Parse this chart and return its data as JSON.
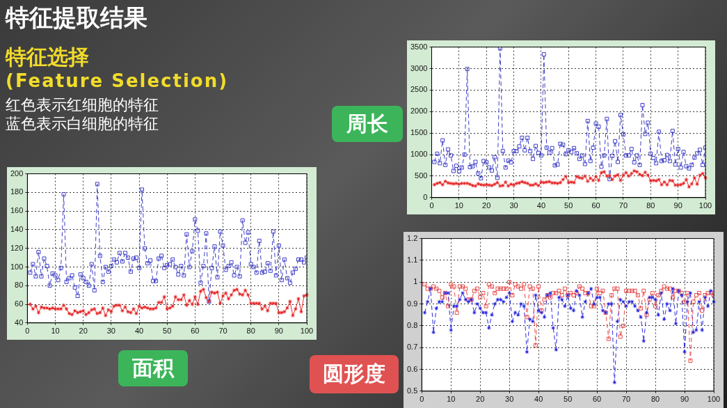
{
  "chart_data": [
    {
      "type": "line",
      "title": "面积",
      "annotations": [
        "特征提取结果",
        "特征选择",
        "(Feature Selection)",
        "红色表示红细胞的特征",
        "蓝色表示白细胞的特征"
      ],
      "x": [
        1,
        2,
        3,
        4,
        5,
        6,
        7,
        8,
        9,
        10,
        11,
        12,
        13,
        14,
        15,
        16,
        17,
        18,
        19,
        20,
        21,
        22,
        23,
        24,
        25,
        26,
        27,
        28,
        29,
        30,
        31,
        32,
        33,
        34,
        35,
        36,
        37,
        38,
        39,
        40,
        41,
        42,
        43,
        44,
        45,
        46,
        47,
        48,
        49,
        50,
        51,
        52,
        53,
        54,
        55,
        56,
        57,
        58,
        59,
        60,
        61,
        62,
        63,
        64,
        65,
        66,
        67,
        68,
        69,
        70,
        71,
        72,
        73,
        74,
        75,
        76,
        77,
        78,
        79,
        80,
        81,
        82,
        83,
        84,
        85,
        86,
        87,
        88,
        89,
        90,
        91,
        92,
        93,
        94,
        95,
        96,
        97,
        98,
        99,
        100
      ],
      "xlim": [
        0,
        100
      ],
      "xticks": [
        0,
        10,
        20,
        30,
        40,
        50,
        60,
        70,
        80,
        90,
        100
      ],
      "ylim": [
        40,
        200
      ],
      "yticks": [
        40,
        60,
        80,
        100,
        120,
        140,
        160,
        180,
        200
      ],
      "grid": true,
      "series": [
        {
          "color": "#3c3cc8",
          "marker": "square",
          "line_style": "dashed",
          "values": [
            94,
            103,
            90,
            116,
            90,
            109,
            101,
            80,
            93,
            91,
            86,
            99,
            178,
            84,
            88,
            91,
            78,
            69,
            92,
            88,
            84,
            80,
            103,
            75,
            189,
            112,
            84,
            100,
            95,
            101,
            108,
            105,
            115,
            106,
            115,
            110,
            95,
            109,
            110,
            99,
            183,
            120,
            104,
            107,
            85,
            85,
            109,
            112,
            99,
            102,
            103,
            108,
            100,
            92,
            101,
            91,
            135,
            100,
            117,
            151,
            139,
            83,
            101,
            136,
            63,
            99,
            122,
            89,
            138,
            123,
            97,
            101,
            105,
            91,
            100,
            90,
            150,
            126,
            137,
            103,
            100,
            94,
            128,
            94,
            95,
            104,
            96,
            138,
            91,
            123,
            86,
            108,
            88,
            83,
            94,
            98,
            108,
            108,
            105,
            110
          ]
        },
        {
          "color": "#e62828",
          "marker": "star",
          "line_style": "solid",
          "values": [
            60,
            55,
            58,
            51,
            57,
            56,
            56,
            55,
            56,
            55,
            55,
            55,
            59,
            55,
            50,
            49,
            53,
            51,
            52,
            53,
            49,
            51,
            54,
            55,
            50,
            51,
            56,
            48,
            54,
            52,
            58,
            59,
            59,
            53,
            57,
            52,
            51,
            55,
            50,
            58,
            56,
            57,
            56,
            55,
            55,
            56,
            62,
            62,
            68,
            55,
            56,
            58,
            68,
            65,
            65,
            70,
            59,
            64,
            60,
            68,
            60,
            74,
            76,
            67,
            63,
            73,
            72,
            73,
            61,
            69,
            72,
            66,
            70,
            75,
            76,
            71,
            70,
            75,
            70,
            61,
            61,
            61,
            61,
            55,
            58,
            53,
            61,
            61,
            61,
            51,
            51,
            52,
            56,
            63,
            48,
            55,
            66,
            52,
            69,
            70
          ]
        }
      ]
    },
    {
      "type": "line",
      "title": "周长",
      "x": [
        1,
        2,
        3,
        4,
        5,
        6,
        7,
        8,
        9,
        10,
        11,
        12,
        13,
        14,
        15,
        16,
        17,
        18,
        19,
        20,
        21,
        22,
        23,
        24,
        25,
        26,
        27,
        28,
        29,
        30,
        31,
        32,
        33,
        34,
        35,
        36,
        37,
        38,
        39,
        40,
        41,
        42,
        43,
        44,
        45,
        46,
        47,
        48,
        49,
        50,
        51,
        52,
        53,
        54,
        55,
        56,
        57,
        58,
        59,
        60,
        61,
        62,
        63,
        64,
        65,
        66,
        67,
        68,
        69,
        70,
        71,
        72,
        73,
        74,
        75,
        76,
        77,
        78,
        79,
        80,
        81,
        82,
        83,
        84,
        85,
        86,
        87,
        88,
        89,
        90,
        91,
        92,
        93,
        94,
        95,
        96,
        97,
        98,
        99,
        100
      ],
      "xlim": [
        0,
        100
      ],
      "xticks": [
        0,
        10,
        20,
        30,
        40,
        50,
        60,
        70,
        80,
        90,
        100
      ],
      "ylim": [
        0,
        3500
      ],
      "yticks": [
        0,
        500,
        1000,
        1500,
        2000,
        2500,
        3000,
        3500
      ],
      "grid": true,
      "series": [
        {
          "color": "#3c3cc8",
          "marker": "square",
          "line_style": "dashed",
          "values": [
            830,
            1020,
            800,
            1330,
            760,
            1120,
            980,
            620,
            740,
            610,
            700,
            1000,
            2990,
            710,
            730,
            830,
            560,
            450,
            850,
            820,
            700,
            630,
            940,
            460,
            3470,
            1080,
            700,
            860,
            820,
            1080,
            1080,
            1190,
            1390,
            1100,
            1390,
            1080,
            900,
            1200,
            1040,
            980,
            3330,
            1160,
            1050,
            1150,
            750,
            770,
            1250,
            1230,
            1010,
            1100,
            1060,
            1150,
            1030,
            900,
            980,
            780,
            1780,
            850,
            1160,
            1720,
            1650,
            720,
            980,
            1830,
            430,
            970,
            1310,
            830,
            1920,
            1470,
            980,
            980,
            1130,
            820,
            980,
            760,
            2150,
            1480,
            1740,
            1020,
            920,
            800,
            1530,
            850,
            870,
            990,
            850,
            1550,
            770,
            1130,
            700,
            1060,
            730,
            680,
            760,
            930,
            1030,
            1110,
            760,
            1160
          ]
        },
        {
          "color": "#e62828",
          "marker": "star",
          "line_style": "solid",
          "values": [
            300,
            330,
            350,
            300,
            380,
            340,
            330,
            320,
            330,
            310,
            330,
            330,
            330,
            310,
            280,
            270,
            320,
            300,
            290,
            300,
            290,
            280,
            310,
            350,
            270,
            280,
            360,
            270,
            310,
            290,
            330,
            340,
            370,
            350,
            330,
            290,
            290,
            320,
            280,
            360,
            350,
            360,
            370,
            340,
            340,
            330,
            350,
            420,
            490,
            350,
            360,
            350,
            490,
            460,
            450,
            500,
            380,
            450,
            400,
            490,
            400,
            580,
            600,
            500,
            510,
            420,
            500,
            530,
            400,
            520,
            580,
            500,
            560,
            620,
            600,
            540,
            510,
            590,
            520,
            390,
            400,
            390,
            420,
            300,
            360,
            300,
            400,
            390,
            290,
            290,
            300,
            330,
            420,
            250,
            320,
            460,
            310,
            520,
            560,
            460
          ]
        }
      ]
    },
    {
      "type": "line",
      "title": "圆形度",
      "x": [
        1,
        2,
        3,
        4,
        5,
        6,
        7,
        8,
        9,
        10,
        11,
        12,
        13,
        14,
        15,
        16,
        17,
        18,
        19,
        20,
        21,
        22,
        23,
        24,
        25,
        26,
        27,
        28,
        29,
        30,
        31,
        32,
        33,
        34,
        35,
        36,
        37,
        38,
        39,
        40,
        41,
        42,
        43,
        44,
        45,
        46,
        47,
        48,
        49,
        50,
        51,
        52,
        53,
        54,
        55,
        56,
        57,
        58,
        59,
        60,
        61,
        62,
        63,
        64,
        65,
        66,
        67,
        68,
        69,
        70,
        71,
        72,
        73,
        74,
        75,
        76,
        77,
        78,
        79,
        80,
        81,
        82,
        83,
        84,
        85,
        86,
        87,
        88,
        89,
        90,
        91,
        92,
        93,
        94,
        95,
        96,
        97,
        98,
        99,
        100
      ],
      "xlim": [
        0,
        100
      ],
      "xticks": [
        0,
        10,
        20,
        30,
        40,
        50,
        60,
        70,
        80,
        90,
        100
      ],
      "ylim": [
        0.5,
        1.2
      ],
      "yticks": [
        0.5,
        0.6,
        0.7,
        0.8,
        0.9,
        1,
        1.1,
        1.2
      ],
      "grid": true,
      "series": [
        {
          "color": "#e84848",
          "marker": "square",
          "line_style": "dashed",
          "values": [
            0.99,
            0.97,
            0.97,
            0.98,
            0.97,
            0.96,
            0.93,
            0.95,
            0.89,
            0.99,
            0.98,
            0.86,
            0.98,
            0.98,
            0.97,
            0.92,
            0.92,
            0.96,
            0.97,
            0.93,
            0.95,
            0.89,
            0.99,
            0.98,
            0.95,
            0.97,
            0.97,
            0.97,
            0.97,
            1.0,
            0.94,
            0.99,
            0.98,
            0.97,
            0.99,
            0.84,
            0.98,
            0.97,
            0.71,
            0.98,
            0.87,
            0.92,
            0.94,
            0.93,
            0.95,
            0.95,
            0.96,
            0.94,
            0.97,
            0.94,
            0.95,
            0.94,
            0.95,
            0.98,
            0.97,
            0.95,
            0.95,
            0.89,
            0.89,
            0.97,
            0.95,
            0.96,
            0.86,
            0.74,
            0.94,
            0.97,
            0.97,
            0.75,
            0.8,
            0.96,
            0.96,
            0.96,
            0.96,
            0.94,
            0.88,
            0.96,
            0.85,
            0.92,
            0.95,
            0.89,
            0.94,
            0.96,
            0.98,
            0.97,
            0.97,
            0.93,
            0.96,
            0.96,
            0.95,
            0.91,
            0.95,
            0.64,
            0.91,
            0.94,
            0.95,
            0.87,
            0.94,
            0.95,
            0.95,
            0.94
          ]
        },
        {
          "color": "#2828e0",
          "marker": "star",
          "line_style": "dashed",
          "values": [
            0.86,
            0.91,
            0.97,
            0.77,
            0.88,
            0.91,
            0.91,
            0.95,
            0.95,
            0.78,
            0.89,
            0.89,
            0.92,
            0.95,
            0.92,
            0.91,
            0.92,
            0.86,
            0.9,
            0.88,
            0.86,
            0.86,
            0.79,
            0.85,
            0.9,
            0.92,
            0.92,
            0.91,
            0.93,
            0.95,
            0.82,
            0.86,
            0.85,
            0.9,
            0.89,
            0.68,
            0.83,
            0.82,
            0.94,
            0.87,
            0.86,
            0.84,
            0.94,
            0.95,
            0.79,
            0.69,
            0.93,
            0.92,
            0.89,
            0.94,
            0.88,
            0.87,
            0.96,
            0.94,
            0.84,
            0.91,
            0.95,
            0.97,
            0.9,
            0.93,
            0.93,
            0.87,
            0.86,
            0.9,
            0.9,
            0.54,
            0.82,
            0.92,
            0.91,
            0.89,
            0.91,
            0.91,
            0.89,
            0.87,
            0.84,
            0.73,
            0.86,
            0.93,
            0.93,
            0.92,
            0.85,
            0.95,
            0.83,
            0.9,
            0.87,
            0.97,
            0.81,
            0.96,
            0.94,
            0.68,
            0.91,
            0.95,
            0.77,
            0.78,
            0.91,
            0.78,
            0.93,
            0.89,
            0.96,
            0.91
          ]
        }
      ]
    }
  ]
}
